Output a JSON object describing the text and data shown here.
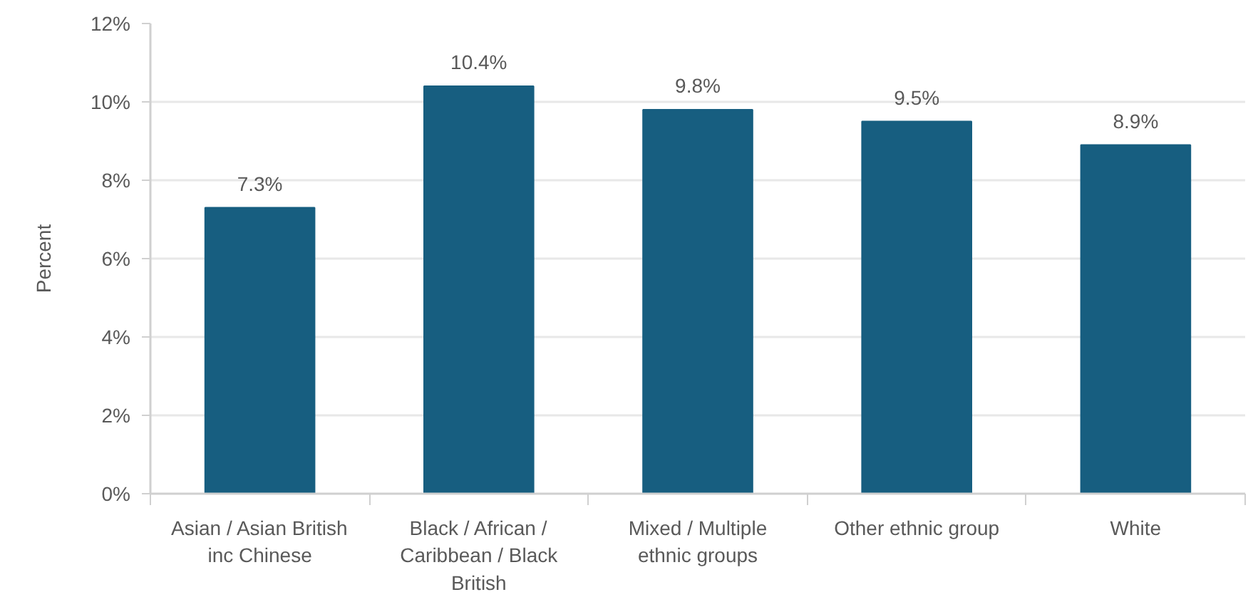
{
  "chart_data": {
    "type": "bar",
    "ylabel": "Percent",
    "categories": [
      "Asian / Asian British inc Chinese",
      "Black / African / Caribbean / Black British",
      "Mixed / Multiple ethnic groups",
      "Other ethnic group",
      "White"
    ],
    "values": [
      7.3,
      10.4,
      9.8,
      9.5,
      8.9
    ],
    "color": "#175e80",
    "value_labels": [
      "7.3%",
      "10.4%",
      "9.8%",
      "9.5%",
      "8.9%"
    ],
    "ylim": [
      0,
      12
    ],
    "yticks": [
      {
        "value": 0,
        "label": "0%"
      },
      {
        "value": 2,
        "label": "2%"
      },
      {
        "value": 4,
        "label": "4%"
      },
      {
        "value": 6,
        "label": "6%"
      },
      {
        "value": 8,
        "label": "8%"
      },
      {
        "value": 10,
        "label": "10%"
      },
      {
        "value": 12,
        "label": "12%"
      }
    ],
    "grid": "y"
  }
}
